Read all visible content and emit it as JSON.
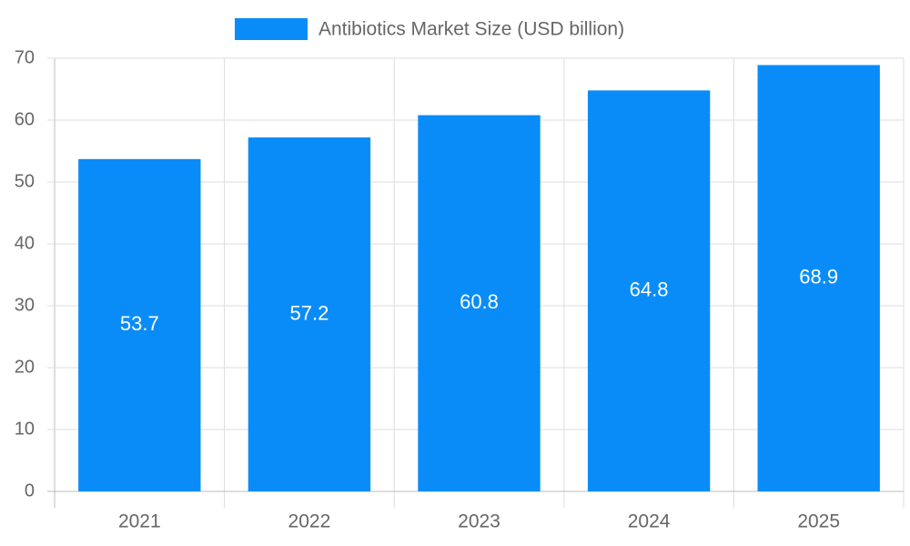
{
  "chart_data": {
    "type": "bar",
    "categories": [
      "2021",
      "2022",
      "2023",
      "2024",
      "2025"
    ],
    "series": [
      {
        "name": "Antibiotics Market Size (USD billion)",
        "color": "#0a8cf8",
        "values": [
          53.7,
          57.2,
          60.8,
          64.8,
          68.9
        ]
      }
    ],
    "ylim": [
      0,
      70
    ],
    "yticks": [
      0,
      10,
      20,
      30,
      40,
      50,
      60,
      70
    ],
    "grid": true,
    "legend": "top"
  }
}
